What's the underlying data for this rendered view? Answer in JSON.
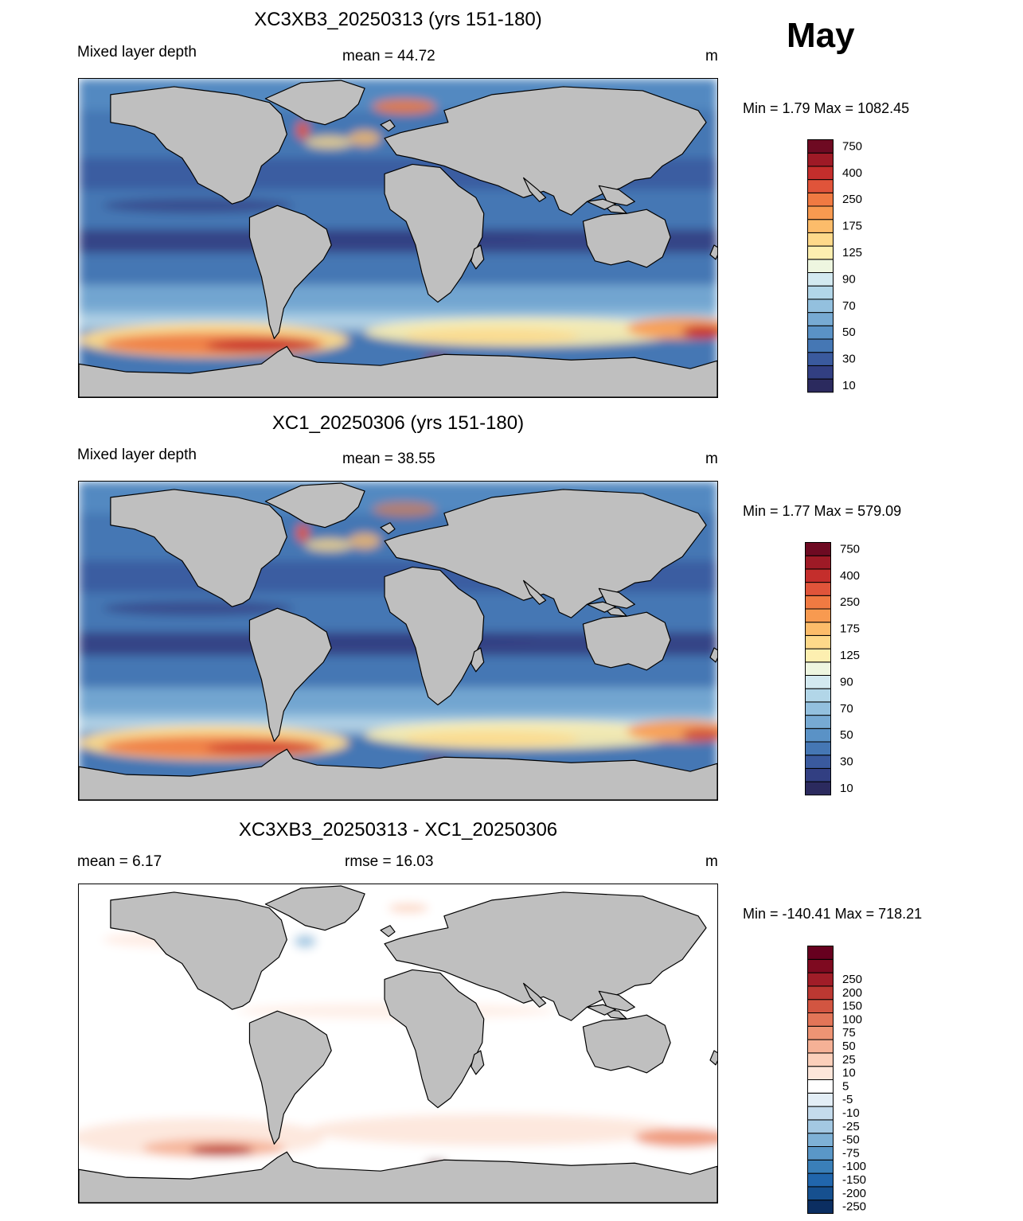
{
  "month": "May",
  "panels": [
    {
      "title": "XC3XB3_20250313 (yrs 151-180)",
      "left_label": "Mixed layer depth",
      "center_label": "mean =  44.72",
      "units": "m",
      "minmax": "Min =    1.79 Max = 1082.45",
      "scale": "mld"
    },
    {
      "title": "XC1_20250306 (yrs 151-180)",
      "left_label": "Mixed layer depth",
      "center_label": "mean =  38.55",
      "units": "m",
      "minmax": "Min =    1.77 Max = 579.09",
      "scale": "mld"
    },
    {
      "title": "XC3XB3_20250313 - XC1_20250306",
      "left_label": "mean =   6.17",
      "center_label": "rmse =  16.03",
      "units": "m",
      "minmax": "Min = -140.41 Max = 718.21",
      "scale": "diff"
    }
  ],
  "colorbars": {
    "mld": {
      "colors": [
        "#2b2a5e",
        "#323f82",
        "#3a5a9e",
        "#4577b4",
        "#5a92c6",
        "#77aad3",
        "#93c0de",
        "#b2d6e8",
        "#d3e9f0",
        "#eef6e0",
        "#fdefb0",
        "#fed98a",
        "#fcbc6a",
        "#f89a50",
        "#f07a42",
        "#e0543a",
        "#c42e2c",
        "#9e1a26",
        "#6e0a22"
      ],
      "labels": [
        {
          "index": 0,
          "text": "10"
        },
        {
          "index": 2,
          "text": "30"
        },
        {
          "index": 4,
          "text": "50"
        },
        {
          "index": 6,
          "text": "70"
        },
        {
          "index": 8,
          "text": "90"
        },
        {
          "index": 10,
          "text": "125"
        },
        {
          "index": 12,
          "text": "175"
        },
        {
          "index": 14,
          "text": "250"
        },
        {
          "index": 16,
          "text": "400"
        },
        {
          "index": 18,
          "text": "750"
        }
      ]
    },
    "diff": {
      "colors": [
        "#0b2e61",
        "#16508f",
        "#2166ac",
        "#3a7fb8",
        "#5a97c7",
        "#7eb1d6",
        "#a3c8e2",
        "#c4dbec",
        "#e3eef6",
        "#ffffff",
        "#fde6da",
        "#fbcfba",
        "#f5b196",
        "#ee9474",
        "#e27558",
        "#d25541",
        "#bb3832",
        "#a01d28",
        "#7e0a20",
        "#67001f"
      ],
      "labels": [
        {
          "index": 0,
          "text": "-250"
        },
        {
          "index": 1,
          "text": "-200"
        },
        {
          "index": 2,
          "text": "-150"
        },
        {
          "index": 3,
          "text": "-100"
        },
        {
          "index": 4,
          "text": "-75"
        },
        {
          "index": 5,
          "text": "-50"
        },
        {
          "index": 6,
          "text": "-25"
        },
        {
          "index": 7,
          "text": "-10"
        },
        {
          "index": 8,
          "text": "-5"
        },
        {
          "index": 9,
          "text": "5"
        },
        {
          "index": 10,
          "text": "10"
        },
        {
          "index": 11,
          "text": "25"
        },
        {
          "index": 12,
          "text": "50"
        },
        {
          "index": 13,
          "text": "75"
        },
        {
          "index": 14,
          "text": "100"
        },
        {
          "index": 15,
          "text": "150"
        },
        {
          "index": 16,
          "text": "200"
        },
        {
          "index": 17,
          "text": "250"
        }
      ]
    }
  },
  "style": {
    "land": "#bfbfbf",
    "coast": "#000000"
  }
}
